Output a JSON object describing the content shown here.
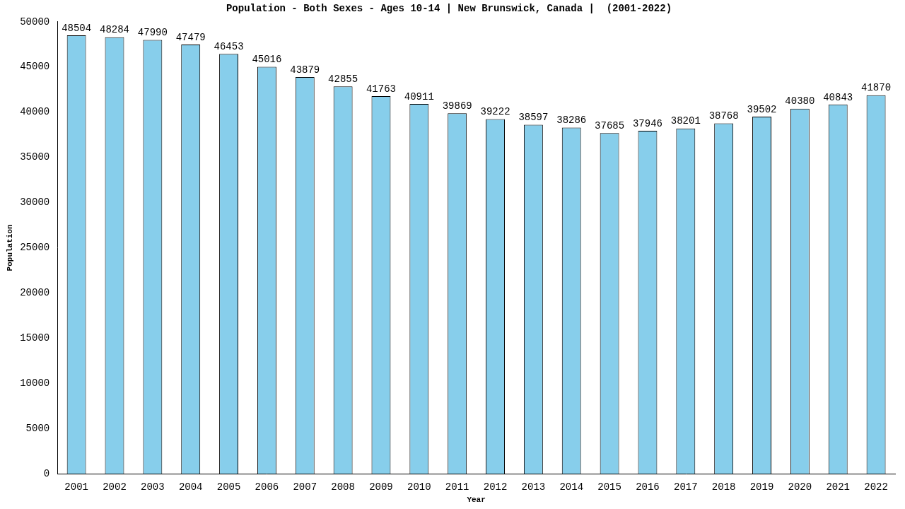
{
  "chart_data": {
    "type": "bar",
    "title": "Population - Both Sexes - Ages 10-14 | New Brunswick, Canada |  (2001-2022)",
    "x_label": "Year",
    "y_label": "Population",
    "categories": [
      "2001",
      "2002",
      "2003",
      "2004",
      "2005",
      "2006",
      "2007",
      "2008",
      "2009",
      "2010",
      "2011",
      "2012",
      "2013",
      "2014",
      "2015",
      "2016",
      "2017",
      "2018",
      "2019",
      "2020",
      "2021",
      "2022"
    ],
    "values": [
      48504,
      48284,
      47990,
      47479,
      46453,
      45016,
      43879,
      42855,
      41763,
      40911,
      39869,
      39222,
      38597,
      38286,
      37685,
      37946,
      38201,
      38768,
      39502,
      40380,
      40843,
      41870
    ],
    "color": "#87ceeb",
    "ylim": [
      0,
      50000
    ],
    "yticks": [
      0,
      5000,
      10000,
      15000,
      20000,
      25000,
      30000,
      35000,
      40000,
      45000,
      50000
    ],
    "grid": false,
    "data_labels": true
  }
}
